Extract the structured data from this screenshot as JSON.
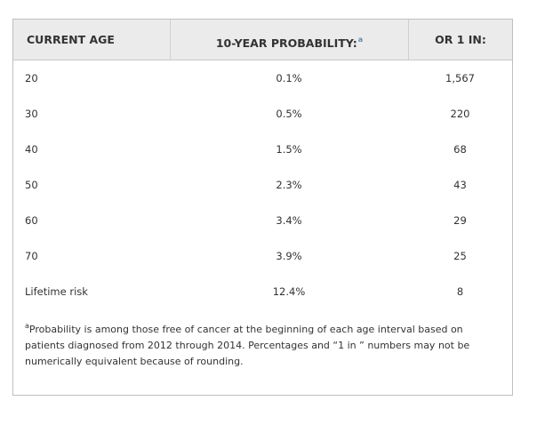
{
  "table": {
    "headers": {
      "age": "CURRENT AGE",
      "probability": "10-YEAR PROBABILITY:",
      "probability_note_mark": "a",
      "one_in": "OR 1 IN:"
    },
    "rows": [
      {
        "age": "20",
        "probability": "0.1%",
        "one_in": "1,567"
      },
      {
        "age": "30",
        "probability": "0.5%",
        "one_in": "220"
      },
      {
        "age": "40",
        "probability": "1.5%",
        "one_in": "68"
      },
      {
        "age": "50",
        "probability": "2.3%",
        "one_in": "43"
      },
      {
        "age": "60",
        "probability": "3.4%",
        "one_in": "29"
      },
      {
        "age": "70",
        "probability": "3.9%",
        "one_in": "25"
      },
      {
        "age": "Lifetime risk",
        "probability": "12.4%",
        "one_in": "8"
      }
    ]
  },
  "footnote": {
    "mark": "a",
    "text": "Probability is among those free of cancer at the beginning of each age interval based on patients diagnosed from 2012 through 2014. Percentages and “1 in ” numbers may not be numerically equivalent because of rounding."
  },
  "colors": {
    "header_background": "#ebebeb",
    "border": "#bfbfbf",
    "footnote_link": "#4a90c8"
  }
}
